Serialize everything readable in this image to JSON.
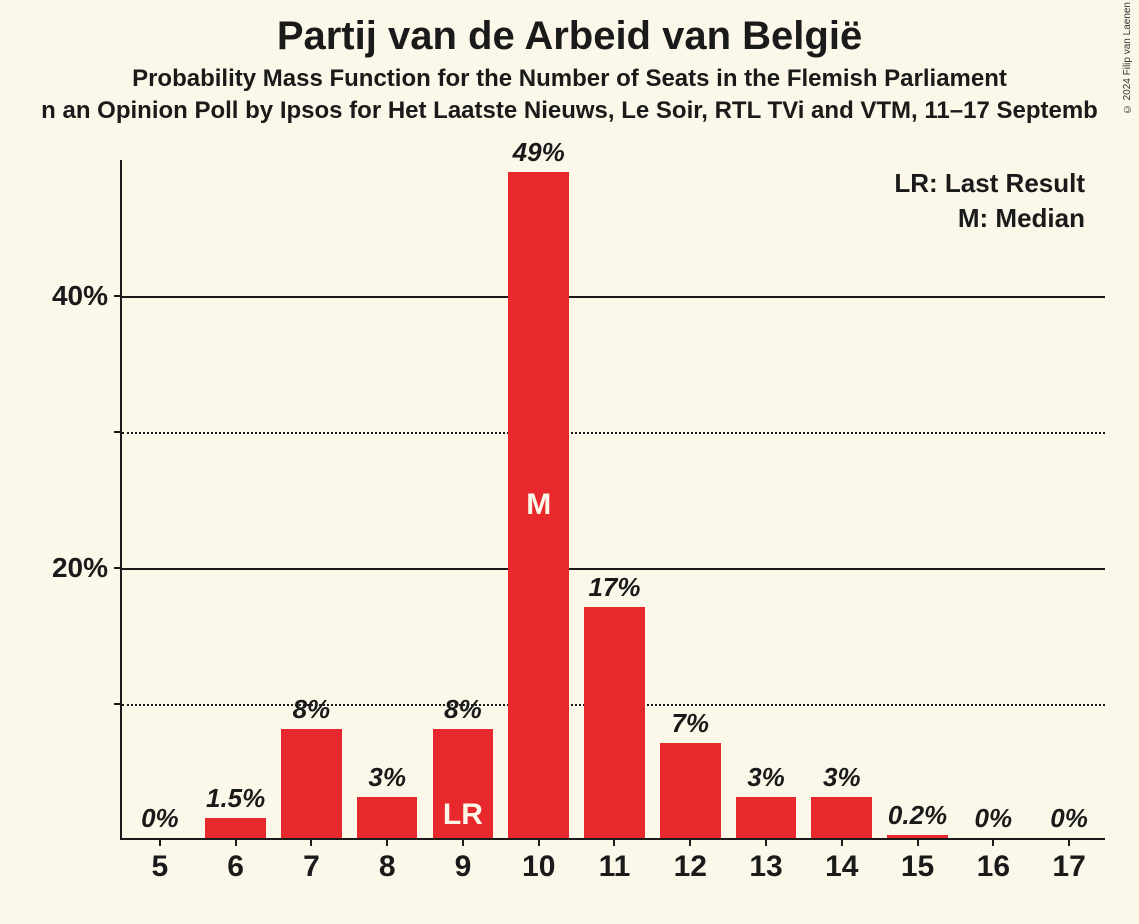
{
  "copyright": "© 2024 Filip van Laenen",
  "title": "Partij van de Arbeid van België",
  "subtitle1": "Probability Mass Function for the Number of Seats in the Flemish Parliament",
  "subtitle2": "n an Opinion Poll by Ipsos for Het Laatste Nieuws, Le Soir, RTL TVi and VTM, 11–17 Septemb",
  "legend": {
    "lr": "LR: Last Result",
    "m": "M: Median"
  },
  "chart": {
    "type": "bar",
    "background_color": "#fbf8ea",
    "bar_color": "#e7282d",
    "text_color": "#1a1a1a",
    "label_in_bar_color": "#fbf8ea",
    "axis_color": "#1a1a1a",
    "grid_solid_color": "#1a1a1a",
    "grid_dotted_color": "#1a1a1a",
    "bar_width_ratio": 0.8,
    "title_fontsize": 40,
    "subtitle_fontsize": 24,
    "axis_label_fontsize": 28,
    "bar_value_fontsize": 26,
    "xtick_fontsize": 30,
    "legend_fontsize": 26,
    "ymax": 50,
    "ytick_step": 10,
    "yticks": [
      {
        "value": 10,
        "label": "",
        "style": "dotted"
      },
      {
        "value": 20,
        "label": "20%",
        "style": "solid"
      },
      {
        "value": 30,
        "label": "",
        "style": "dotted"
      },
      {
        "value": 40,
        "label": "40%",
        "style": "solid"
      }
    ],
    "categories": [
      "5",
      "6",
      "7",
      "8",
      "9",
      "10",
      "11",
      "12",
      "13",
      "14",
      "15",
      "16",
      "17"
    ],
    "values": [
      0,
      1.5,
      8,
      3,
      8,
      49,
      17,
      7,
      3,
      3,
      0.2,
      0,
      0
    ],
    "value_labels": [
      "0%",
      "1.5%",
      "8%",
      "3%",
      "8%",
      "49%",
      "17%",
      "7%",
      "3%",
      "3%",
      "0.2%",
      "0%",
      "0%"
    ],
    "annotations": [
      {
        "index": 4,
        "text": "LR",
        "position": "bottom"
      },
      {
        "index": 5,
        "text": "M",
        "position": "middle"
      }
    ]
  }
}
